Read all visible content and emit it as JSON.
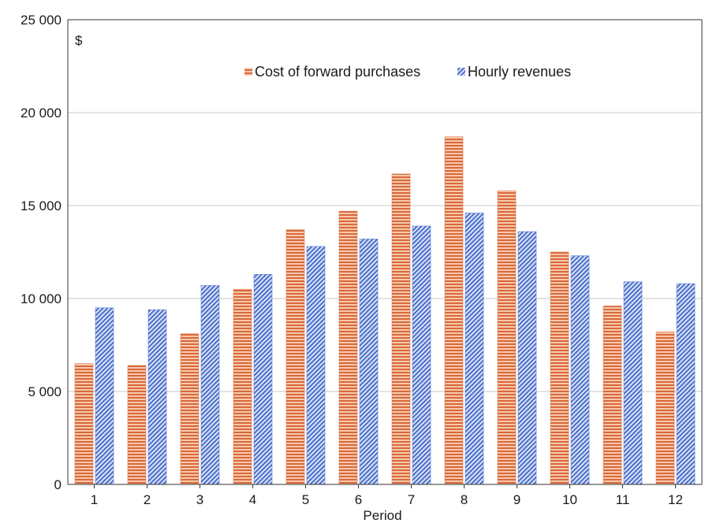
{
  "chart_data": {
    "type": "bar",
    "title": "",
    "unit_label": "$",
    "xlabel": "Period",
    "ylabel": "",
    "ylim": [
      0,
      25000
    ],
    "y_ticks": [
      0,
      5000,
      10000,
      15000,
      20000,
      25000
    ],
    "y_tick_labels": [
      "0",
      "5 000",
      "10 000",
      "15 000",
      "20 000",
      "25 000"
    ],
    "grid": true,
    "legend_position": "top-center",
    "categories": [
      "1",
      "2",
      "3",
      "4",
      "5",
      "6",
      "7",
      "8",
      "9",
      "10",
      "11",
      "12"
    ],
    "series": [
      {
        "name": "Cost of forward purchases",
        "color": "#e07b4f",
        "pattern": "horizontal-lines",
        "values": [
          6500,
          6400,
          8100,
          10500,
          13700,
          14700,
          16700,
          18700,
          15800,
          12500,
          9600,
          8200
        ]
      },
      {
        "name": "Hourly revenues",
        "color": "#5b7fd4",
        "pattern": "diagonal-lines",
        "values": [
          9500,
          9400,
          10700,
          11300,
          12800,
          13200,
          13900,
          14600,
          13600,
          12300,
          10900,
          10800
        ]
      }
    ]
  }
}
